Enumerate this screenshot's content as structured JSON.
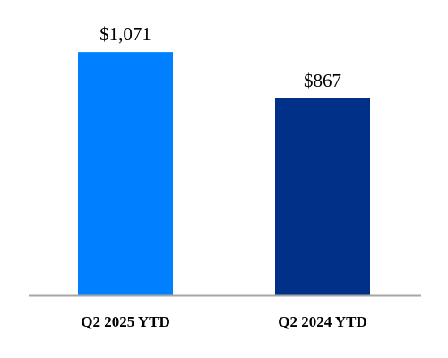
{
  "chart_data": {
    "type": "bar",
    "title": "",
    "xlabel": "",
    "ylabel": "",
    "categories": [
      "Q2 2025 YTD",
      "Q2 2024 YTD"
    ],
    "values": [
      1071,
      867
    ],
    "value_labels": [
      "$1,071",
      "$867"
    ],
    "colors": [
      "#0080ff",
      "#003087"
    ],
    "axis_color": "#a6a6a6",
    "ylim": [
      0,
      1300
    ],
    "grid": false,
    "legend": "none"
  }
}
